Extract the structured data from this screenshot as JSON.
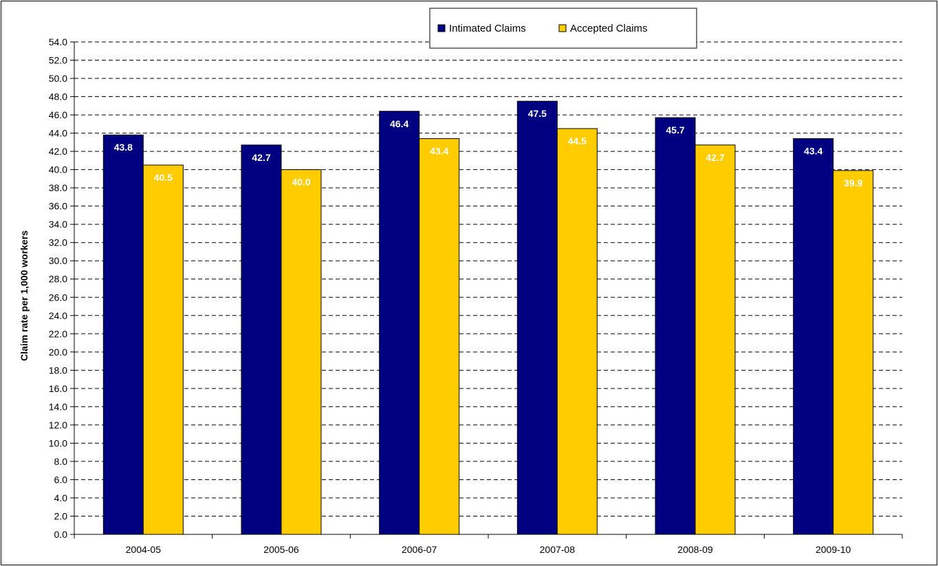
{
  "chart_data": {
    "type": "bar",
    "categories": [
      "2004-05",
      "2005-06",
      "2006-07",
      "2007-08",
      "2008-09",
      "2009-10"
    ],
    "series": [
      {
        "name": "Intimated Claims",
        "color": "#000080",
        "values": [
          43.8,
          42.7,
          46.4,
          47.5,
          45.7,
          43.4
        ]
      },
      {
        "name": "Accepted Claims",
        "color": "#FFCC00",
        "values": [
          40.5,
          40.0,
          43.4,
          44.5,
          42.7,
          39.9
        ]
      }
    ],
    "data_labels": [
      [
        "43.8",
        "42.7",
        "46.4",
        "47.5",
        "45.7",
        "43.4"
      ],
      [
        "40.5",
        "40.0",
        "43.4",
        "44.5",
        "42.7",
        "39.9"
      ]
    ],
    "ylabel": "Claim rate per 1,000 workers",
    "ylim": [
      0,
      54
    ],
    "ytick_step": 2,
    "ytick_labels": [
      "0.0",
      "2.0",
      "4.0",
      "6.0",
      "8.0",
      "10.0",
      "12.0",
      "14.0",
      "16.0",
      "18.0",
      "20.0",
      "22.0",
      "24.0",
      "26.0",
      "28.0",
      "30.0",
      "32.0",
      "34.0",
      "36.0",
      "38.0",
      "40.0",
      "42.0",
      "44.0",
      "46.0",
      "48.0",
      "50.0",
      "52.0",
      "54.0"
    ],
    "grid": true,
    "legend_position": "top-center"
  }
}
